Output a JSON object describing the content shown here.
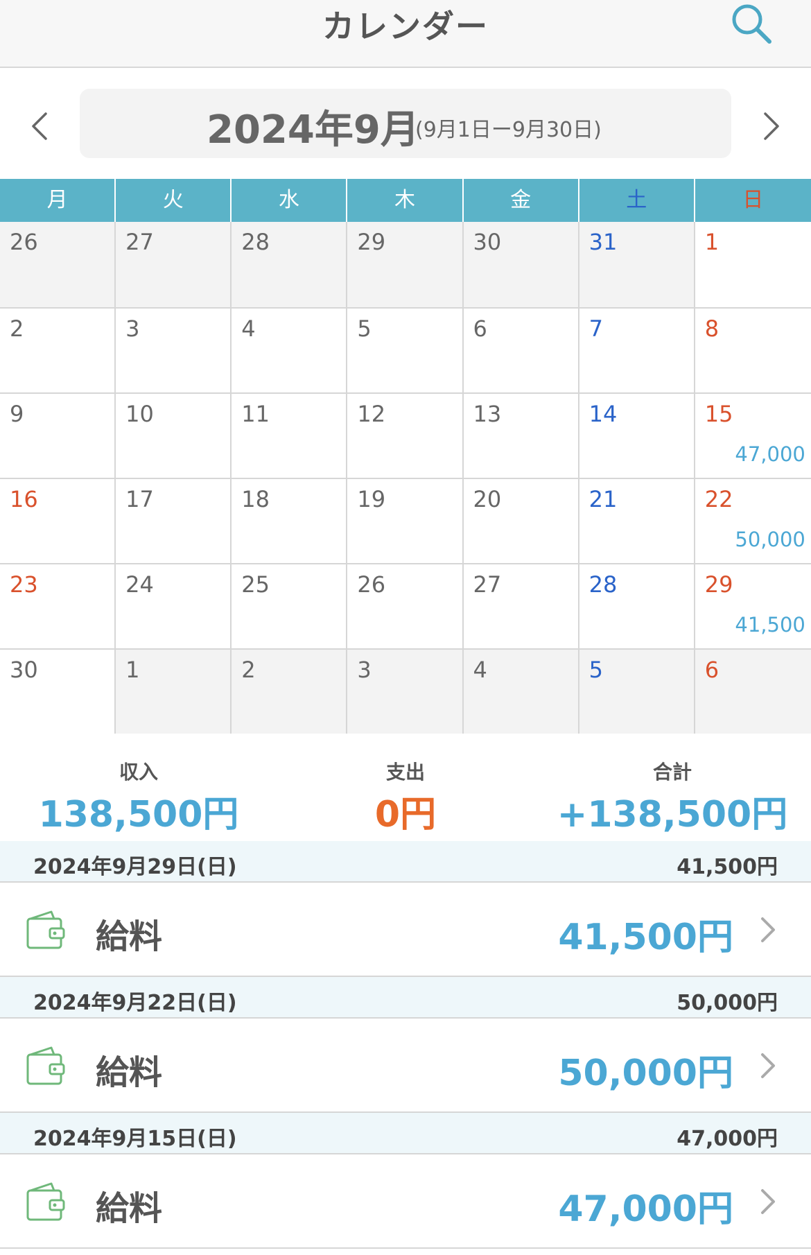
{
  "header": {
    "title": "カレンダー",
    "search_icon": "search-icon"
  },
  "month_nav": {
    "label": "2024年9月",
    "range": "(9月1日ー9月30日)",
    "prev_icon": "chevron-left-icon",
    "next_icon": "chevron-right-icon"
  },
  "weekdays": [
    "月",
    "火",
    "水",
    "木",
    "金",
    "土",
    "日"
  ],
  "weeks": [
    [
      {
        "d": "26",
        "other": true
      },
      {
        "d": "27",
        "other": true
      },
      {
        "d": "28",
        "other": true
      },
      {
        "d": "29",
        "other": true
      },
      {
        "d": "30",
        "other": true
      },
      {
        "d": "31",
        "other": true
      },
      {
        "d": "1"
      }
    ],
    [
      {
        "d": "2"
      },
      {
        "d": "3"
      },
      {
        "d": "4"
      },
      {
        "d": "5"
      },
      {
        "d": "6"
      },
      {
        "d": "7"
      },
      {
        "d": "8"
      }
    ],
    [
      {
        "d": "9"
      },
      {
        "d": "10"
      },
      {
        "d": "11"
      },
      {
        "d": "12"
      },
      {
        "d": "13"
      },
      {
        "d": "14"
      },
      {
        "d": "15",
        "amount": "47,000"
      }
    ],
    [
      {
        "d": "16",
        "holiday": true
      },
      {
        "d": "17"
      },
      {
        "d": "18"
      },
      {
        "d": "19"
      },
      {
        "d": "20"
      },
      {
        "d": "21"
      },
      {
        "d": "22",
        "amount": "50,000"
      }
    ],
    [
      {
        "d": "23",
        "holiday": true
      },
      {
        "d": "24"
      },
      {
        "d": "25"
      },
      {
        "d": "26"
      },
      {
        "d": "27"
      },
      {
        "d": "28"
      },
      {
        "d": "29",
        "amount": "41,500"
      }
    ],
    [
      {
        "d": "30"
      },
      {
        "d": "1",
        "other": true
      },
      {
        "d": "2",
        "other": true
      },
      {
        "d": "3",
        "other": true
      },
      {
        "d": "4",
        "other": true
      },
      {
        "d": "5",
        "other": true
      },
      {
        "d": "6",
        "other": true
      }
    ]
  ],
  "summary": {
    "income_label": "収入",
    "income_value": "138,500円",
    "expense_label": "支出",
    "expense_value": "0円",
    "total_label": "合計",
    "total_value": "+138,500円"
  },
  "entries": [
    {
      "date": "2024年9月29日(日)",
      "date_total": "41,500円",
      "name": "給料",
      "amount": "41,500円",
      "icon": "wallet-icon"
    },
    {
      "date": "2024年9月22日(日)",
      "date_total": "50,000円",
      "name": "給料",
      "amount": "50,000円",
      "icon": "wallet-icon"
    },
    {
      "date": "2024年9月15日(日)",
      "date_total": "47,000円",
      "name": "給料",
      "amount": "47,000円",
      "icon": "wallet-icon"
    }
  ],
  "colors": {
    "accent": "#5bb3c8",
    "income": "#4ba7d4",
    "expense": "#e86a2a",
    "saturday": "#2a63c9",
    "sunday": "#d9512c"
  }
}
